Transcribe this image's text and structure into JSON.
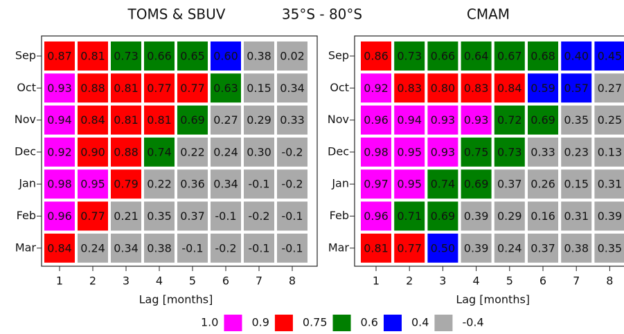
{
  "subtitle": "35°S - 80°S",
  "legend": {
    "bounds": [
      {
        "value": 1,
        "label": "1.0"
      },
      0.9,
      0.75,
      0.6,
      0.4,
      -0.4
    ],
    "colors": [
      "#ff00ff",
      "#ff0000",
      "#007f00",
      "#0000ff",
      "#aaaaaa"
    ]
  },
  "chart_data": [
    {
      "type": "heatmap",
      "title": "TOMS & SBUV",
      "xlabel": "Lag [months]",
      "x": [
        1,
        2,
        3,
        4,
        5,
        6,
        7,
        8
      ],
      "y": [
        "Sep",
        "Oct",
        "Nov",
        "Dec",
        "Jan",
        "Feb",
        "Mar"
      ],
      "values": [
        [
          0.87,
          0.81,
          0.73,
          0.66,
          0.65,
          0.6,
          0.38,
          0.02
        ],
        [
          0.93,
          0.88,
          0.81,
          0.77,
          0.77,
          0.63,
          0.15,
          0.34
        ],
        [
          0.94,
          0.84,
          0.81,
          0.81,
          0.69,
          0.27,
          0.29,
          0.33
        ],
        [
          0.92,
          0.9,
          0.88,
          0.74,
          0.22,
          0.24,
          0.3,
          -0.2
        ],
        [
          0.98,
          0.95,
          0.79,
          0.22,
          0.36,
          0.34,
          -0.1,
          -0.2
        ],
        [
          0.96,
          0.77,
          0.21,
          0.35,
          0.37,
          -0.1,
          -0.2,
          -0.1
        ],
        [
          0.84,
          0.24,
          0.34,
          0.38,
          -0.1,
          -0.2,
          -0.1,
          -0.1
        ]
      ],
      "value_labels": [
        [
          "0.87",
          "0.81",
          "0.73",
          "0.66",
          "0.65",
          "0.60",
          "0.38",
          "0.02"
        ],
        [
          "0.93",
          "0.88",
          "0.81",
          "0.77",
          "0.77",
          "0.63",
          "0.15",
          "0.34"
        ],
        [
          "0.94",
          "0.84",
          "0.81",
          "0.81",
          "0.69",
          "0.27",
          "0.29",
          "0.33"
        ],
        [
          "0.92",
          "0.90",
          "0.88",
          "0.74",
          "0.22",
          "0.24",
          "0.30",
          "-0.2"
        ],
        [
          "0.98",
          "0.95",
          "0.79",
          "0.22",
          "0.36",
          "0.34",
          "-0.1",
          "-0.2"
        ],
        [
          "0.96",
          "0.77",
          "0.21",
          "0.35",
          "0.37",
          "-0.1",
          "-0.2",
          "-0.1"
        ],
        [
          "0.84",
          "0.24",
          "0.34",
          "0.38",
          "-0.1",
          "-0.2",
          "-0.1",
          "-0.1"
        ]
      ],
      "colors": [
        [
          "#ff0000",
          "#ff0000",
          "#007f00",
          "#007f00",
          "#007f00",
          "#0000ff",
          "#aaaaaa",
          "#aaaaaa"
        ],
        [
          "#ff00ff",
          "#ff0000",
          "#ff0000",
          "#ff0000",
          "#ff0000",
          "#007f00",
          "#aaaaaa",
          "#aaaaaa"
        ],
        [
          "#ff00ff",
          "#ff0000",
          "#ff0000",
          "#ff0000",
          "#007f00",
          "#aaaaaa",
          "#aaaaaa",
          "#aaaaaa"
        ],
        [
          "#ff00ff",
          "#ff0000",
          "#ff0000",
          "#007f00",
          "#aaaaaa",
          "#aaaaaa",
          "#aaaaaa",
          "#aaaaaa"
        ],
        [
          "#ff00ff",
          "#ff00ff",
          "#ff0000",
          "#aaaaaa",
          "#aaaaaa",
          "#aaaaaa",
          "#aaaaaa",
          "#aaaaaa"
        ],
        [
          "#ff00ff",
          "#ff0000",
          "#aaaaaa",
          "#aaaaaa",
          "#aaaaaa",
          "#aaaaaa",
          "#aaaaaa",
          "#aaaaaa"
        ],
        [
          "#ff0000",
          "#aaaaaa",
          "#aaaaaa",
          "#aaaaaa",
          "#aaaaaa",
          "#aaaaaa",
          "#aaaaaa",
          "#aaaaaa"
        ]
      ]
    },
    {
      "type": "heatmap",
      "title": "CMAM",
      "xlabel": "Lag [months]",
      "x": [
        1,
        2,
        3,
        4,
        5,
        6,
        7,
        8
      ],
      "y": [
        "Sep",
        "Oct",
        "Nov",
        "Dec",
        "Jan",
        "Feb",
        "Mar"
      ],
      "values": [
        [
          0.86,
          0.73,
          0.66,
          0.64,
          0.67,
          0.68,
          0.4,
          0.45
        ],
        [
          0.92,
          0.83,
          0.8,
          0.83,
          0.84,
          0.59,
          0.57,
          0.27
        ],
        [
          0.96,
          0.94,
          0.93,
          0.93,
          0.72,
          0.69,
          0.35,
          0.25
        ],
        [
          0.98,
          0.95,
          0.93,
          0.75,
          0.73,
          0.33,
          0.23,
          0.13
        ],
        [
          0.97,
          0.95,
          0.74,
          0.69,
          0.37,
          0.26,
          0.15,
          0.31
        ],
        [
          0.96,
          0.71,
          0.69,
          0.39,
          0.29,
          0.16,
          0.31,
          0.39
        ],
        [
          0.81,
          0.77,
          0.5,
          0.39,
          0.24,
          0.37,
          0.38,
          0.35
        ]
      ],
      "value_labels": [
        [
          "0.86",
          "0.73",
          "0.66",
          "0.64",
          "0.67",
          "0.68",
          "0.40",
          "0.45"
        ],
        [
          "0.92",
          "0.83",
          "0.80",
          "0.83",
          "0.84",
          "0.59",
          "0.57",
          "0.27"
        ],
        [
          "0.96",
          "0.94",
          "0.93",
          "0.93",
          "0.72",
          "0.69",
          "0.35",
          "0.25"
        ],
        [
          "0.98",
          "0.95",
          "0.93",
          "0.75",
          "0.73",
          "0.33",
          "0.23",
          "0.13"
        ],
        [
          "0.97",
          "0.95",
          "0.74",
          "0.69",
          "0.37",
          "0.26",
          "0.15",
          "0.31"
        ],
        [
          "0.96",
          "0.71",
          "0.69",
          "0.39",
          "0.29",
          "0.16",
          "0.31",
          "0.39"
        ],
        [
          "0.81",
          "0.77",
          "0.50",
          "0.39",
          "0.24",
          "0.37",
          "0.38",
          "0.35"
        ]
      ],
      "colors": [
        [
          "#ff0000",
          "#007f00",
          "#007f00",
          "#007f00",
          "#007f00",
          "#007f00",
          "#0000ff",
          "#0000ff"
        ],
        [
          "#ff00ff",
          "#ff0000",
          "#ff0000",
          "#ff0000",
          "#ff0000",
          "#0000ff",
          "#0000ff",
          "#aaaaaa"
        ],
        [
          "#ff00ff",
          "#ff00ff",
          "#ff00ff",
          "#ff00ff",
          "#007f00",
          "#007f00",
          "#aaaaaa",
          "#aaaaaa"
        ],
        [
          "#ff00ff",
          "#ff00ff",
          "#ff00ff",
          "#007f00",
          "#007f00",
          "#aaaaaa",
          "#aaaaaa",
          "#aaaaaa"
        ],
        [
          "#ff00ff",
          "#ff00ff",
          "#007f00",
          "#007f00",
          "#aaaaaa",
          "#aaaaaa",
          "#aaaaaa",
          "#aaaaaa"
        ],
        [
          "#ff00ff",
          "#007f00",
          "#007f00",
          "#aaaaaa",
          "#aaaaaa",
          "#aaaaaa",
          "#aaaaaa",
          "#aaaaaa"
        ],
        [
          "#ff0000",
          "#ff0000",
          "#0000ff",
          "#aaaaaa",
          "#aaaaaa",
          "#aaaaaa",
          "#aaaaaa",
          "#aaaaaa"
        ]
      ]
    }
  ]
}
